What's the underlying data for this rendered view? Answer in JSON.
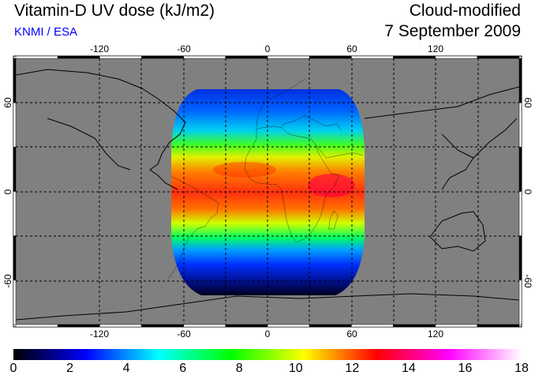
{
  "header": {
    "title": "Vitamin-D UV dose (kJ/m2)",
    "credit": "KNMI / ESA",
    "mode": "Cloud-modified",
    "date": "7 September 2009"
  },
  "colors": {
    "credit": "#0000ff",
    "ocean_land_nodata": "#808080"
  },
  "map": {
    "lon_labels": [
      "-120",
      "-60",
      "0",
      "60",
      "120"
    ],
    "lat_labels": [
      "60",
      "0",
      "-60"
    ]
  },
  "colorbar": {
    "units": "kJ/m2",
    "range": [
      0,
      18
    ],
    "tick_labels": [
      "0",
      "2",
      "4",
      "6",
      "8",
      "10",
      "12",
      "14",
      "16",
      "18"
    ],
    "colors": [
      "#000000",
      "#0000ff",
      "#00ffff",
      "#00ff00",
      "#ffff00",
      "#ff0000",
      "#ff00ff",
      "#ffffff"
    ]
  }
}
